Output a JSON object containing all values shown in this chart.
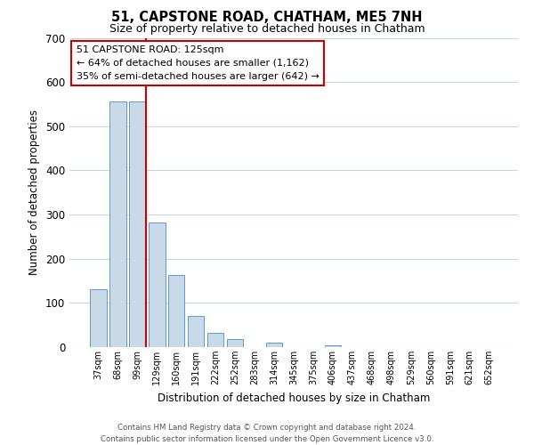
{
  "title": "51, CAPSTONE ROAD, CHATHAM, ME5 7NH",
  "subtitle": "Size of property relative to detached houses in Chatham",
  "xlabel": "Distribution of detached houses by size in Chatham",
  "ylabel": "Number of detached properties",
  "bin_labels": [
    "37sqm",
    "68sqm",
    "99sqm",
    "129sqm",
    "160sqm",
    "191sqm",
    "222sqm",
    "252sqm",
    "283sqm",
    "314sqm",
    "345sqm",
    "375sqm",
    "406sqm",
    "437sqm",
    "468sqm",
    "498sqm",
    "529sqm",
    "560sqm",
    "591sqm",
    "621sqm",
    "652sqm"
  ],
  "bar_heights": [
    130,
    555,
    555,
    283,
    163,
    70,
    33,
    19,
    0,
    10,
    0,
    0,
    4,
    0,
    0,
    0,
    0,
    0,
    0,
    0,
    0
  ],
  "bar_color": "#c9d9e8",
  "bar_edge_color": "#5b9bd5",
  "red_line_color": "#cc0000",
  "ylim": [
    0,
    700
  ],
  "yticks": [
    0,
    100,
    200,
    300,
    400,
    500,
    600,
    700
  ],
  "annotation_title": "51 CAPSTONE ROAD: 125sqm",
  "annotation_line1": "← 64% of detached houses are smaller (1,162)",
  "annotation_line2": "35% of semi-detached houses are larger (642) →",
  "annotation_box_color": "#ffffff",
  "annotation_box_edge_color": "#cc0000",
  "footer_line1": "Contains HM Land Registry data © Crown copyright and database right 2024.",
  "footer_line2": "Contains public sector information licensed under the Open Government Licence v3.0.",
  "background_color": "#ffffff",
  "grid_color": "#c8d4e0"
}
